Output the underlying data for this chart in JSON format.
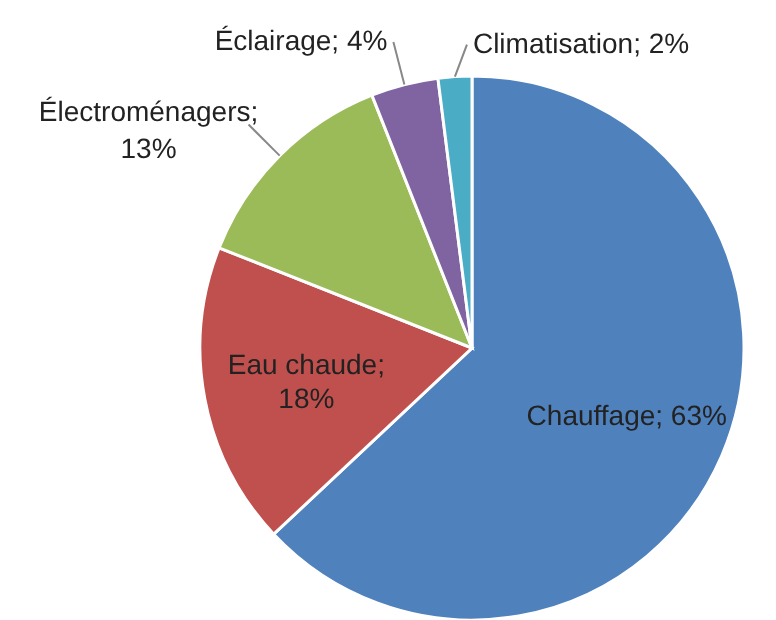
{
  "chart_data": {
    "type": "pie",
    "categories": [
      "Chauffage",
      "Eau chaude",
      "Électroménagers",
      "Éclairage",
      "Climatisation"
    ],
    "values": [
      63,
      18,
      13,
      4,
      2
    ],
    "colors": [
      "#4f81bd",
      "#c0504d",
      "#9bbb59",
      "#8064a2",
      "#4bacc6"
    ],
    "value_labels": [
      "; 63%",
      "; 18%",
      "; 13%",
      "; 4%",
      "; 2%"
    ]
  }
}
